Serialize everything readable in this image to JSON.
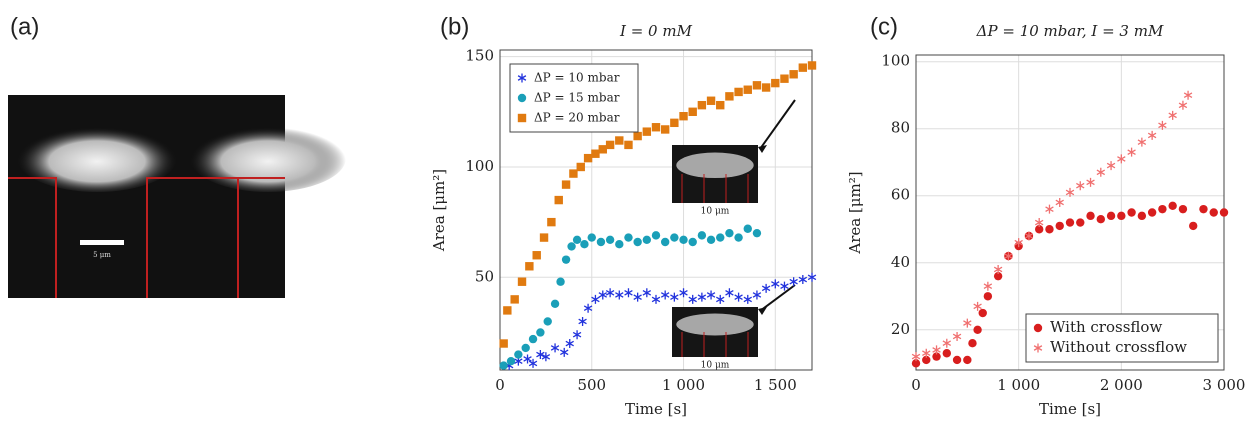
{
  "panel_labels": [
    "(a)",
    "(b)",
    "(c)"
  ],
  "image_a": {
    "scale_label": "5 μm"
  },
  "chart_data": [
    {
      "type": "scatter",
      "title": "I = 0 mM",
      "x_label": "Time [s]",
      "y_label": "Area [μm²]",
      "xlim": [
        0,
        1700
      ],
      "ylim": [
        8,
        153
      ],
      "xticks": [
        0,
        500,
        {
          "value": 1000,
          "label": "1 000"
        },
        {
          "value": 1500,
          "label": "1 500"
        }
      ],
      "yticks": [
        50,
        100,
        150
      ],
      "grid": true,
      "legend": "upper left",
      "annotations": [
        "10 μm",
        "10 μm"
      ],
      "series": [
        {
          "name": "ΔP = 10 mbar",
          "color": "#2233dd",
          "marker": "star",
          "x": [
            50,
            100,
            150,
            180,
            220,
            250,
            300,
            350,
            380,
            420,
            450,
            480,
            520,
            560,
            600,
            650,
            700,
            750,
            800,
            850,
            900,
            950,
            1000,
            1050,
            1100,
            1150,
            1200,
            1250,
            1300,
            1350,
            1400,
            1450,
            1500,
            1550,
            1600,
            1650,
            1700
          ],
          "values": [
            10,
            12,
            13,
            11,
            15,
            14,
            18,
            16,
            20,
            24,
            30,
            36,
            40,
            42,
            43,
            42,
            43,
            41,
            43,
            40,
            42,
            41,
            43,
            40,
            41,
            42,
            40,
            43,
            41,
            40,
            42,
            45,
            47,
            46,
            48,
            49,
            50
          ]
        },
        {
          "name": "ΔP = 15 mbar",
          "color": "#1a9fb8",
          "marker": "circle",
          "x": [
            20,
            60,
            100,
            140,
            180,
            220,
            260,
            300,
            330,
            360,
            390,
            420,
            460,
            500,
            550,
            600,
            650,
            700,
            750,
            800,
            850,
            900,
            950,
            1000,
            1050,
            1100,
            1150,
            1200,
            1250,
            1300,
            1350,
            1400
          ],
          "values": [
            10,
            12,
            15,
            18,
            22,
            25,
            30,
            38,
            48,
            58,
            64,
            67,
            65,
            68,
            66,
            67,
            65,
            68,
            66,
            67,
            69,
            66,
            68,
            67,
            66,
            69,
            67,
            68,
            70,
            68,
            72,
            70
          ]
        },
        {
          "name": "ΔP = 20 mbar",
          "color": "#e07a10",
          "marker": "square",
          "x": [
            20,
            40,
            80,
            120,
            160,
            200,
            240,
            280,
            320,
            360,
            400,
            440,
            480,
            520,
            560,
            600,
            650,
            700,
            750,
            800,
            850,
            900,
            950,
            1000,
            1050,
            1100,
            1150,
            1200,
            1250,
            1300,
            1350,
            1400,
            1450,
            1500,
            1550,
            1600,
            1650,
            1700
          ],
          "values": [
            20,
            35,
            40,
            48,
            55,
            60,
            68,
            75,
            85,
            92,
            97,
            100,
            104,
            106,
            108,
            110,
            112,
            110,
            114,
            116,
            118,
            117,
            120,
            123,
            125,
            128,
            130,
            128,
            132,
            134,
            135,
            137,
            136,
            138,
            140,
            142,
            145,
            146
          ]
        }
      ]
    },
    {
      "type": "scatter",
      "title": "ΔP = 10 mbar, I = 3 mM",
      "x_label": "Time [s]",
      "y_label": "Area [μm²]",
      "xlim": [
        0,
        3000
      ],
      "ylim": [
        8,
        102
      ],
      "xticks": [
        0,
        {
          "value": 1000,
          "label": "1 000"
        },
        {
          "value": 2000,
          "label": "2 000"
        },
        {
          "value": 3000,
          "label": "3 000"
        }
      ],
      "yticks": [
        20,
        40,
        60,
        80,
        100
      ],
      "grid": true,
      "legend": "lower right",
      "series": [
        {
          "name": "With crossflow",
          "color": "#d81e1e",
          "marker": "circle",
          "x": [
            0,
            100,
            200,
            300,
            400,
            500,
            550,
            600,
            650,
            700,
            800,
            900,
            1000,
            1100,
            1200,
            1300,
            1400,
            1500,
            1600,
            1700,
            1800,
            1900,
            2000,
            2100,
            2200,
            2300,
            2400,
            2500,
            2600,
            2700,
            2800,
            2900,
            3000
          ],
          "values": [
            10,
            11,
            12,
            13,
            11,
            11,
            16,
            20,
            25,
            30,
            36,
            42,
            45,
            48,
            50,
            50,
            51,
            52,
            52,
            54,
            53,
            54,
            54,
            55,
            54,
            55,
            56,
            57,
            56,
            51,
            56,
            55,
            55
          ]
        },
        {
          "name": "Without crossflow",
          "color": "#f07070",
          "marker": "star",
          "x": [
            0,
            100,
            200,
            300,
            400,
            500,
            600,
            700,
            800,
            900,
            1000,
            1100,
            1200,
            1300,
            1400,
            1500,
            1600,
            1700,
            1800,
            1900,
            2000,
            2100,
            2200,
            2300,
            2400,
            2500,
            2600,
            2650
          ],
          "values": [
            12,
            13,
            14,
            16,
            18,
            22,
            27,
            33,
            38,
            42,
            46,
            48,
            52,
            56,
            58,
            61,
            63,
            64,
            67,
            69,
            71,
            73,
            76,
            78,
            81,
            84,
            87,
            90
          ]
        }
      ]
    }
  ]
}
